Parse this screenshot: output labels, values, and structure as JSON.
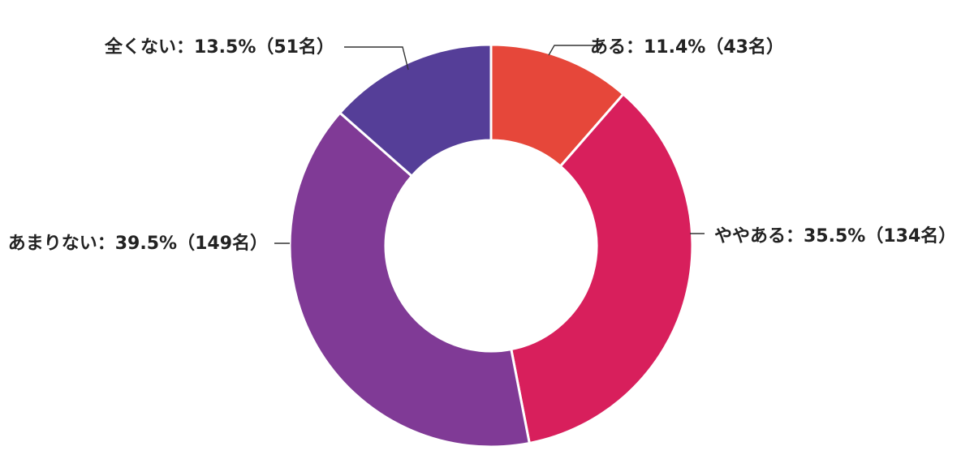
{
  "chart_data": {
    "type": "pie",
    "donut": true,
    "slices": [
      {
        "category": "ある",
        "percent": 11.4,
        "count": 43,
        "label": "ある：11.4%（43名）",
        "color": "#e6473a"
      },
      {
        "category": "ややある",
        "percent": 35.5,
        "count": 134,
        "label": "ややある：35.5%（134名）",
        "color": "#d81f5c"
      },
      {
        "category": "あまりない",
        "percent": 39.5,
        "count": 149,
        "label": "あまりない：39.5%（149名）",
        "color": "#803a96"
      },
      {
        "category": "全くない",
        "percent": 13.5,
        "count": 51,
        "label": "全くない：13.5%（51名）",
        "color": "#553e98"
      }
    ]
  }
}
